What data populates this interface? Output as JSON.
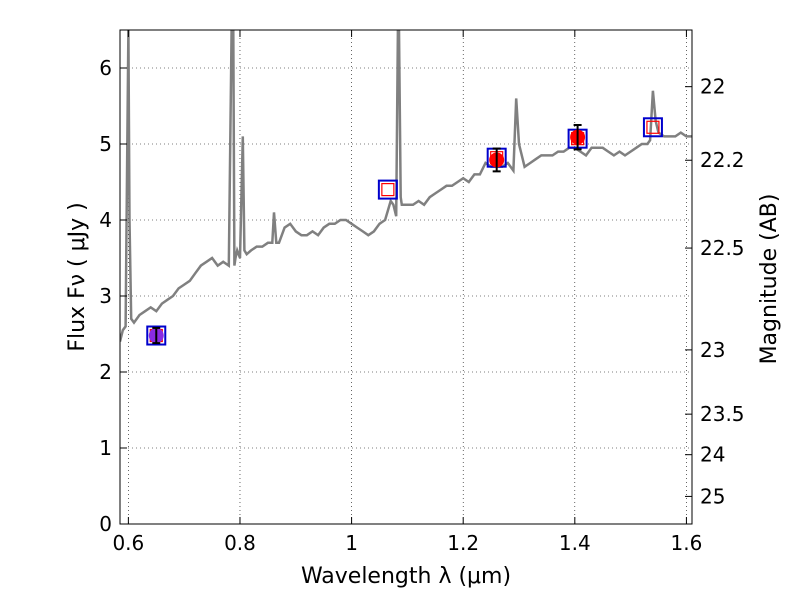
{
  "chart_data": {
    "type": "line",
    "xlabel": "Wavelength  λ (μm)",
    "ylabel": "Flux  Fν  ( μJy )",
    "y2label": "Magnitude (AB)",
    "xlim": [
      0.585,
      1.61
    ],
    "ylim": [
      0,
      6.5
    ],
    "grid": true,
    "x_ticks": [
      0.6,
      0.8,
      1.0,
      1.2,
      1.4,
      1.6
    ],
    "x_tick_labels": [
      "0.6",
      "0.8",
      "1",
      "1.2",
      "1.4",
      "1.6"
    ],
    "y_ticks": [
      0,
      1,
      2,
      3,
      4,
      5,
      6
    ],
    "y_tick_labels": [
      "0",
      "1",
      "2",
      "3",
      "4",
      "5",
      "6"
    ],
    "y2_tick_labels": [
      "22",
      "22.2",
      "22.5",
      "23",
      "23.5",
      "24",
      "25"
    ],
    "y2_tick_values_mag": [
      22,
      22.2,
      22.5,
      23,
      23.5,
      24,
      25
    ],
    "colors": {
      "spectrum": "#808080",
      "observed_fill": "#ff0000",
      "observed_blend": "#8a2be2",
      "model_outer": "#0000cc",
      "model_inner": "#ff0000",
      "errorbar": "#000000"
    },
    "series": [
      {
        "kind": "spectrum",
        "x": [
          0.585,
          0.59,
          0.595,
          0.598,
          0.6,
          0.602,
          0.605,
          0.61,
          0.62,
          0.63,
          0.64,
          0.65,
          0.66,
          0.67,
          0.68,
          0.69,
          0.7,
          0.71,
          0.72,
          0.73,
          0.74,
          0.75,
          0.76,
          0.77,
          0.78,
          0.785,
          0.788,
          0.79,
          0.792,
          0.795,
          0.8,
          0.805,
          0.808,
          0.812,
          0.82,
          0.83,
          0.84,
          0.85,
          0.858,
          0.861,
          0.865,
          0.87,
          0.88,
          0.89,
          0.9,
          0.91,
          0.92,
          0.93,
          0.94,
          0.95,
          0.96,
          0.97,
          0.98,
          0.99,
          1.0,
          1.01,
          1.02,
          1.03,
          1.04,
          1.05,
          1.06,
          1.07,
          1.075,
          1.08,
          1.083,
          1.085,
          1.088,
          1.09,
          1.095,
          1.1,
          1.11,
          1.12,
          1.13,
          1.14,
          1.15,
          1.16,
          1.17,
          1.18,
          1.19,
          1.2,
          1.21,
          1.22,
          1.23,
          1.24,
          1.25,
          1.26,
          1.27,
          1.28,
          1.29,
          1.295,
          1.3,
          1.31,
          1.32,
          1.33,
          1.34,
          1.35,
          1.36,
          1.37,
          1.38,
          1.39,
          1.4,
          1.41,
          1.42,
          1.43,
          1.44,
          1.45,
          1.46,
          1.47,
          1.48,
          1.49,
          1.5,
          1.51,
          1.52,
          1.53,
          1.535,
          1.54,
          1.545,
          1.55,
          1.56,
          1.57,
          1.58,
          1.59,
          1.6,
          1.61
        ],
        "values": [
          2.4,
          2.55,
          2.6,
          5.0,
          6.5,
          4.0,
          2.7,
          2.65,
          2.75,
          2.8,
          2.85,
          2.8,
          2.9,
          2.95,
          3.0,
          3.1,
          3.15,
          3.2,
          3.3,
          3.4,
          3.45,
          3.5,
          3.4,
          3.45,
          3.4,
          6.5,
          6.5,
          3.4,
          3.5,
          3.6,
          3.5,
          5.1,
          3.6,
          3.55,
          3.6,
          3.65,
          3.65,
          3.7,
          3.7,
          4.1,
          3.7,
          3.7,
          3.9,
          3.95,
          3.85,
          3.8,
          3.8,
          3.85,
          3.8,
          3.9,
          3.95,
          3.95,
          4.0,
          4.0,
          3.95,
          3.9,
          3.85,
          3.8,
          3.85,
          3.95,
          4.0,
          4.25,
          4.2,
          4.05,
          6.5,
          6.5,
          4.3,
          4.2,
          4.2,
          4.2,
          4.2,
          4.25,
          4.2,
          4.3,
          4.35,
          4.4,
          4.45,
          4.45,
          4.5,
          4.55,
          4.5,
          4.6,
          4.6,
          4.75,
          4.7,
          4.7,
          4.7,
          4.75,
          4.65,
          5.6,
          5.0,
          4.7,
          4.75,
          4.8,
          4.85,
          4.85,
          4.85,
          4.9,
          4.9,
          4.95,
          4.95,
          4.9,
          4.85,
          4.95,
          4.95,
          4.95,
          4.9,
          4.85,
          4.9,
          4.85,
          4.9,
          4.95,
          5.0,
          5.0,
          5.05,
          5.7,
          5.3,
          5.15,
          5.1,
          5.1,
          5.1,
          5.15,
          5.1,
          5.1
        ]
      },
      {
        "kind": "model_photometry",
        "x": [
          0.65,
          1.065,
          1.26,
          1.405,
          1.54
        ],
        "values": [
          2.48,
          4.4,
          4.82,
          5.07,
          5.22
        ]
      },
      {
        "kind": "observed_photometry",
        "x": [
          0.65,
          1.26,
          1.405
        ],
        "values": [
          2.48,
          4.79,
          5.09
        ],
        "errors": [
          0.1,
          0.15,
          0.16
        ],
        "blend": [
          true,
          false,
          false
        ]
      }
    ]
  }
}
